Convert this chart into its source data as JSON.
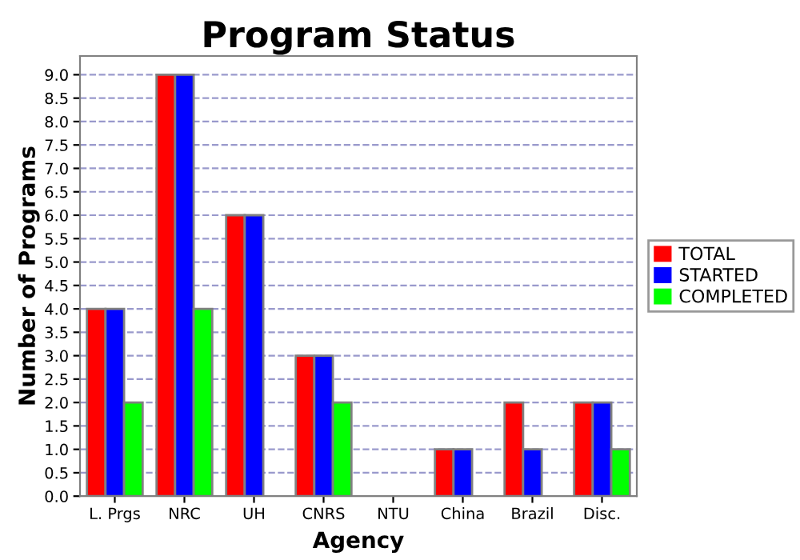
{
  "chart_data": {
    "type": "bar",
    "title": "Program Status",
    "xlabel": "Agency",
    "ylabel": "Number of Programs",
    "categories": [
      "L. Prgs",
      "NRC",
      "UH",
      "CNRS",
      "NTU",
      "China",
      "Brazil",
      "Disc."
    ],
    "series": [
      {
        "name": "TOTAL",
        "color": "#ff0000",
        "values": [
          4,
          9,
          6,
          3,
          0,
          1,
          2,
          2
        ]
      },
      {
        "name": "STARTED",
        "color": "#0000ff",
        "values": [
          4,
          9,
          6,
          3,
          0,
          1,
          1,
          2
        ]
      },
      {
        "name": "COMPLETED",
        "color": "#00ff00",
        "values": [
          2,
          4,
          0,
          2,
          0,
          0,
          0,
          1
        ]
      }
    ],
    "ylim": [
      0,
      9.4
    ],
    "yticks": [
      {
        "value": 0,
        "label": "0.0"
      },
      {
        "value": 0.5,
        "label": "0.5"
      },
      {
        "value": 1,
        "label": "1.0"
      },
      {
        "value": 1.5,
        "label": "1.5"
      },
      {
        "value": 2,
        "label": "2.0"
      },
      {
        "value": 2.5,
        "label": "2.5"
      },
      {
        "value": 3,
        "label": "3.0"
      },
      {
        "value": 3.5,
        "label": "3.5"
      },
      {
        "value": 4,
        "label": "4.0"
      },
      {
        "value": 4.5,
        "label": "4.5"
      },
      {
        "value": 5,
        "label": "5.0"
      },
      {
        "value": 5.5,
        "label": "5.5"
      },
      {
        "value": 6,
        "label": "6.0"
      },
      {
        "value": 6.5,
        "label": "6.5"
      },
      {
        "value": 7,
        "label": "7.0"
      },
      {
        "value": 7.5,
        "label": "7.5"
      },
      {
        "value": 8,
        "label": "8.0"
      },
      {
        "value": 8.5,
        "label": "8.5"
      },
      {
        "value": 9,
        "label": "9.0"
      }
    ],
    "grid": "y",
    "legend": "right"
  }
}
